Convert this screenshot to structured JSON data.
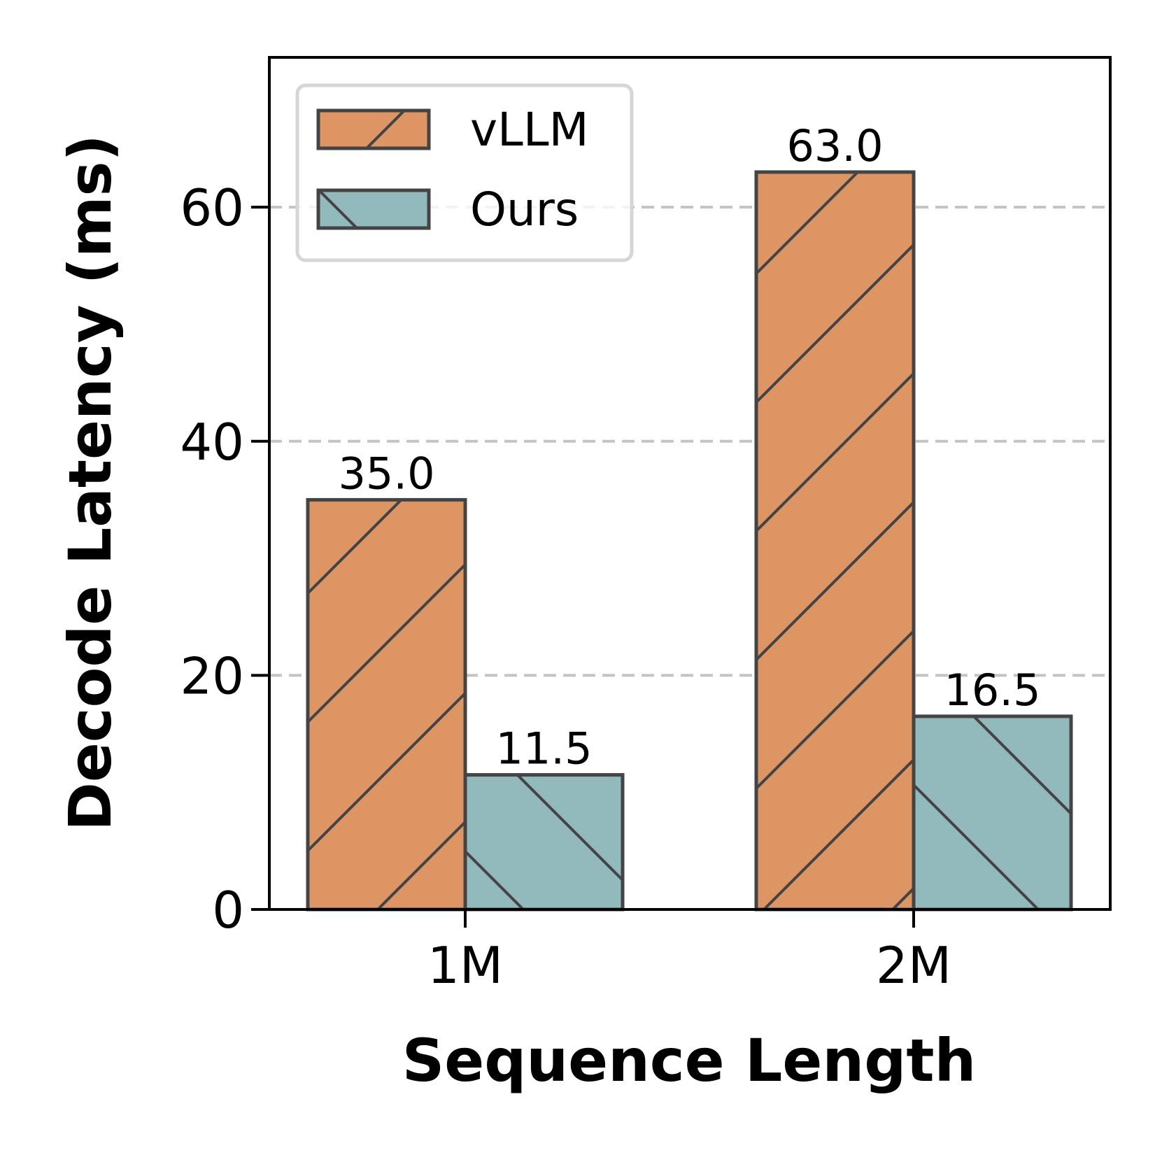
{
  "chart_data": {
    "type": "bar",
    "categories": [
      "1M",
      "2M"
    ],
    "series": [
      {
        "name": "vLLM",
        "values": [
          35.0,
          63.0
        ],
        "labels": [
          "35.0",
          "63.0"
        ],
        "color": "#DD9663",
        "hatch": "forward-diagonal"
      },
      {
        "name": "Ours",
        "values": [
          11.5,
          16.5
        ],
        "labels": [
          "11.5",
          "16.5"
        ],
        "color": "#92BABC",
        "hatch": "back-diagonal"
      }
    ],
    "xlabel": "Sequence Length",
    "ylabel": "Decode Latency (ms)",
    "ylim": [
      0,
      72.8
    ],
    "yticks": [
      0,
      20,
      40,
      60
    ],
    "grid": "y-dashed",
    "legend_position": "upper-left"
  }
}
